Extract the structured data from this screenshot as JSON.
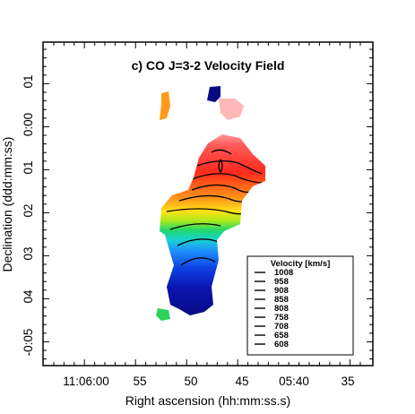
{
  "chart_data": {
    "type": "heatmap",
    "title": "c) CO J=3-2 Velocity Field",
    "xlabel": "Right ascension (hh:mm:ss.s)",
    "ylabel": "Declination (ddd:mm:ss)",
    "x_ticks": [
      "11:06:00",
      "55",
      "50",
      "45",
      "05:40",
      "35"
    ],
    "y_ticks": [
      "01",
      "0:00",
      "01",
      "02",
      "03",
      "04",
      "-0:05"
    ],
    "colorscale": [
      "#08088c",
      "#0b2fd6",
      "#1f8fff",
      "#18d2d2",
      "#22d86a",
      "#a8e81a",
      "#f0e418",
      "#ffa11a",
      "#ff3a1e",
      "#ff7a7a",
      "#ffc0c0"
    ],
    "legend": {
      "title": "Velocity [km/s]",
      "position": "lower-right",
      "entries": [
        "1008",
        "958",
        "908",
        "858",
        "808",
        "758",
        "708",
        "658",
        "608"
      ]
    }
  }
}
